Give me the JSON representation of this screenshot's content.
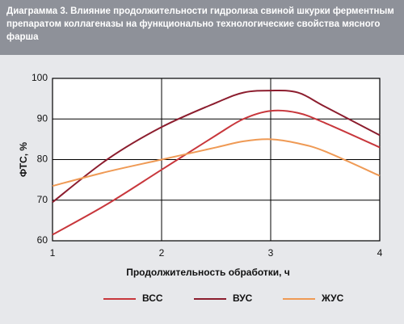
{
  "chart_data": {
    "type": "line",
    "title": "Диаграмма 3. Влияние продолжительности гидролиза свиной шкурки ферментным препаратом коллагеназы на функционально технологические свойства мясного фарша",
    "x": [
      1,
      1.5,
      2,
      2.5,
      2.75,
      3,
      3.25,
      3.5,
      4
    ],
    "series": [
      {
        "name": "ВСС",
        "color": "#c8373c",
        "values": [
          61.5,
          69,
          77.5,
          86,
          90,
          92,
          91.5,
          89,
          83
        ]
      },
      {
        "name": "ВУС",
        "color": "#8c1d2e",
        "values": [
          69.5,
          80,
          88,
          94,
          96.5,
          97,
          96.5,
          93,
          86
        ]
      },
      {
        "name": "ЖУС",
        "color": "#ef9a55",
        "values": [
          73.5,
          77,
          80,
          83,
          84.5,
          85,
          84,
          82,
          76
        ]
      }
    ],
    "xlabel": "Продолжительность обработки, ч",
    "ylabel": "ФТС, %",
    "xlim": [
      1,
      4
    ],
    "xticks": [
      1,
      2,
      3,
      4
    ],
    "ylim": [
      60,
      100
    ],
    "yticks": [
      60,
      70,
      80,
      90,
      100
    ],
    "grid": true,
    "legend": "bottom"
  }
}
